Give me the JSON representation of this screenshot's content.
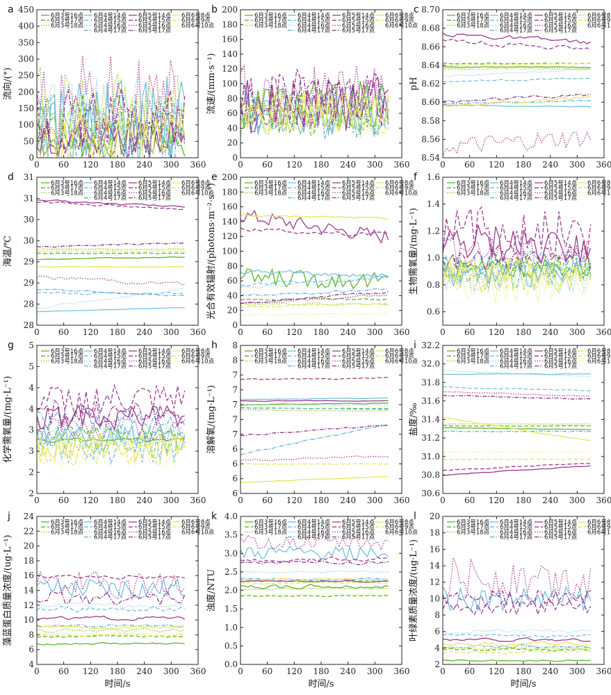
{
  "figure": {
    "x_label": "时间/s",
    "x_range": [
      0,
      360
    ],
    "x_ticks": [
      0,
      60,
      120,
      180,
      240,
      300,
      360
    ]
  },
  "series_styles": [
    {
      "name": "6月3号16点",
      "color": "#5db42a",
      "dash": "solid",
      "width": 1.3
    },
    {
      "name": "6月3号17点",
      "color": "#5db42a",
      "dash": "6,3",
      "width": 1.3
    },
    {
      "name": "6月3号18点",
      "color": "#8fc21d",
      "dash": "1.5,2",
      "width": 1.3
    },
    {
      "name": "6月4号14点",
      "color": "#6bbbe0",
      "dash": "solid",
      "width": 1.2
    },
    {
      "name": "6月4号15点",
      "color": "#6bbbe0",
      "dash": "6,3",
      "width": 1.2
    },
    {
      "name": "6月4号16点",
      "color": "#8fcfe8",
      "dash": "1.5,2",
      "width": 1.2
    },
    {
      "name": "6月4号17点",
      "color": "#58aad6",
      "dash": "6,2,1.5,2",
      "width": 1.2
    },
    {
      "name": "6月5号14点",
      "color": "#9a3d8f",
      "dash": "solid",
      "width": 1.3
    },
    {
      "name": "6月5号15点",
      "color": "#9a3d8f",
      "dash": "6,3",
      "width": 1.3
    },
    {
      "name": "6月5号16点",
      "color": "#b0408f",
      "dash": "1.5,2",
      "width": 1.3
    },
    {
      "name": "6月5号17点",
      "color": "#8e3688",
      "dash": "6,2,1.5,2",
      "width": 1.3
    },
    {
      "name": "6月6号8点",
      "color": "#e6e65a",
      "dash": "solid",
      "width": 1.3
    },
    {
      "name": "6月6号9点",
      "color": "#e6e65a",
      "dash": "6,3",
      "width": 1.3
    },
    {
      "name": "6月6号10点",
      "color": "#eded80",
      "dash": "1.5,2",
      "width": 1.3
    }
  ],
  "chart_data": [
    {
      "label": "a",
      "type": "line",
      "ylabel": "流向/(°)",
      "ylim": [
        0,
        450
      ],
      "yticks": [
        0,
        50,
        100,
        150,
        200,
        250,
        300,
        350,
        400,
        450
      ],
      "series_count": 14,
      "levels": [
        55,
        110,
        150,
        100,
        80,
        130,
        60,
        60,
        110,
        170,
        70,
        60,
        90,
        120
      ],
      "amps": [
        60,
        90,
        130,
        150,
        90,
        120,
        140,
        50,
        100,
        140,
        80,
        80,
        110,
        100
      ]
    },
    {
      "label": "b",
      "type": "line",
      "ylabel": "流速/(mm·s⁻¹)",
      "ylim": [
        0,
        200
      ],
      "yticks": [
        0,
        20,
        40,
        60,
        80,
        100,
        120,
        140,
        160,
        180,
        200
      ],
      "series_count": 14,
      "levels": [
        70,
        60,
        55,
        60,
        65,
        70,
        55,
        70,
        80,
        85,
        75,
        65,
        60,
        60
      ],
      "amps": [
        35,
        30,
        30,
        30,
        35,
        30,
        30,
        35,
        40,
        45,
        35,
        30,
        30,
        30
      ]
    },
    {
      "label": "c",
      "type": "line",
      "ylabel": "pH",
      "ylim": [
        8.54,
        8.7
      ],
      "yticks": [
        8.54,
        8.56,
        8.58,
        8.6,
        8.62,
        8.64,
        8.66,
        8.68,
        8.7
      ],
      "series_count": 14,
      "levels": [
        8.638,
        8.642,
        8.636,
        8.597,
        8.622,
        8.628,
        8.598,
        8.674,
        8.668,
        8.551,
        8.6,
        8.595,
        8.64,
        8.635
      ],
      "amps": [
        0.001,
        0.001,
        0.001,
        0.001,
        0.002,
        0.002,
        0.001,
        0.005,
        0.005,
        0.01,
        0.004,
        0.003,
        0.001,
        0.002
      ],
      "trends": [
        0.0,
        0.0,
        0.0,
        -0.002,
        0.004,
        0.008,
        0.004,
        -0.01,
        -0.012,
        0.01,
        0.008,
        0.01,
        0.002,
        0.002
      ]
    },
    {
      "label": "d",
      "type": "line",
      "ylabel": "海温/℃",
      "ylim": [
        27.5,
        31.0
      ],
      "yticks": [
        27.5,
        28.0,
        28.5,
        29.0,
        29.5,
        30.0,
        30.5,
        31.0
      ],
      "series_count": 14,
      "levels": [
        29.06,
        29.2,
        29.3,
        27.82,
        28.25,
        27.9,
        28.35,
        30.45,
        30.4,
        28.65,
        29.35,
        28.88,
        29.25,
        29.28
      ],
      "amps": [
        0.02,
        0.02,
        0.02,
        0.01,
        0.05,
        0.05,
        0.03,
        0.05,
        0.05,
        0.1,
        0.04,
        0.01,
        0.02,
        0.02
      ],
      "trends": [
        0.05,
        0.0,
        0.0,
        0.1,
        0.0,
        0.45,
        -0.15,
        -0.15,
        -0.15,
        -0.2,
        0.1,
        0.0,
        0.0,
        0.0
      ]
    },
    {
      "label": "e",
      "type": "line",
      "ylabel": "光合有效辐射/(photons·m⁻²·s⁻¹)",
      "ylim": [
        0,
        200
      ],
      "yticks": [
        0,
        20,
        40,
        60,
        80,
        100,
        120,
        140,
        160,
        180,
        200
      ],
      "series_count": 14,
      "levels": [
        65,
        35,
        28,
        72,
        55,
        50,
        40,
        150,
        130,
        30,
        30,
        148,
        25,
        14
      ],
      "amps": [
        12,
        3,
        3,
        8,
        5,
        5,
        4,
        10,
        6,
        4,
        3,
        3,
        2,
        1
      ],
      "trends": [
        -5,
        0,
        0,
        -5,
        10,
        15,
        8,
        -30,
        -8,
        10,
        15,
        -3,
        5,
        2
      ]
    },
    {
      "label": "f",
      "type": "line",
      "ylabel": "生物需氧量/(mg·L⁻¹)",
      "ylim": [
        0.5,
        1.6
      ],
      "yticks": [
        0.6,
        0.8,
        1.0,
        1.2,
        1.4,
        1.6
      ],
      "series_count": 14,
      "levels": [
        0.92,
        0.95,
        0.88,
        0.88,
        0.9,
        0.85,
        0.95,
        1.1,
        1.2,
        1.05,
        1.0,
        0.9,
        0.85,
        0.8
      ],
      "amps": [
        0.07,
        0.1,
        0.12,
        0.1,
        0.14,
        0.12,
        0.1,
        0.15,
        0.18,
        0.1,
        0.1,
        0.1,
        0.12,
        0.13
      ]
    },
    {
      "label": "g",
      "type": "line",
      "ylabel": "化学需氧量/(mg·L⁻¹)",
      "ylim": [
        1.5,
        5.0
      ],
      "yticks": [
        1.5,
        2.0,
        2.5,
        3.0,
        3.5,
        4.0,
        4.5,
        5.0
      ],
      "series_count": 14,
      "levels": [
        2.75,
        2.9,
        2.7,
        2.8,
        2.6,
        2.9,
        3.2,
        3.3,
        3.7,
        3.0,
        3.4,
        2.6,
        2.5,
        2.4
      ],
      "amps": [
        0.1,
        0.2,
        0.3,
        0.3,
        0.4,
        0.3,
        0.3,
        0.3,
        0.4,
        0.3,
        0.3,
        0.3,
        0.35,
        0.35
      ]
    },
    {
      "label": "h",
      "type": "line",
      "ylabel": "溶解氧/(mg·L⁻¹)",
      "ylim": [
        5.8,
        7.8
      ],
      "yticks": [
        5.8,
        6.0,
        6.2,
        6.4,
        6.6,
        6.8,
        7.0,
        7.2,
        7.4,
        7.6,
        7.8
      ],
      "series_count": 14,
      "levels": [
        7.0,
        6.96,
        6.93,
        7.07,
        6.95,
        7.0,
        6.33,
        7.05,
        7.34,
        6.25,
        6.58,
        5.95,
        6.2,
        6.98
      ],
      "amps": [
        0.01,
        0.01,
        0.01,
        0.01,
        0.01,
        0.01,
        0.02,
        0.01,
        0.02,
        0.03,
        0.02,
        0.01,
        0.01,
        0.01
      ],
      "trends": [
        0.02,
        -0.02,
        -0.02,
        0.02,
        0.0,
        0.0,
        0.4,
        0.0,
        0.02,
        0.05,
        0.15,
        0.08,
        0.0,
        0.0
      ]
    },
    {
      "label": "i",
      "type": "line",
      "ylabel": "盐度/‰",
      "ylim": [
        30.6,
        32.2
      ],
      "yticks": [
        30.6,
        30.8,
        31.0,
        31.2,
        31.4,
        31.6,
        31.8,
        32.0,
        32.2
      ],
      "series_count": 14,
      "levels": [
        31.31,
        31.33,
        31.35,
        31.89,
        31.75,
        31.93,
        31.27,
        30.8,
        30.85,
        31.7,
        31.66,
        31.42,
        30.97,
        31.05
      ],
      "amps": [
        0.005,
        0.005,
        0.005,
        0.01,
        0.01,
        0.01,
        0.01,
        0.01,
        0.01,
        0.01,
        0.01,
        0.01,
        0.01,
        0.005
      ],
      "trends": [
        -0.02,
        0.0,
        0.0,
        0.0,
        -0.04,
        -0.07,
        0.0,
        0.1,
        0.08,
        -0.05,
        -0.04,
        -0.25,
        0.0,
        0.0
      ]
    },
    {
      "label": "j",
      "type": "line",
      "ylabel": "藻蓝蛋白质量浓度/(ug·L⁻¹)",
      "ylim": [
        4,
        24
      ],
      "yticks": [
        4,
        6,
        8,
        10,
        12,
        14,
        16,
        18,
        20,
        22,
        24
      ],
      "series_count": 14,
      "levels": [
        6.8,
        7.8,
        8.6,
        14.5,
        11.5,
        12.0,
        9.2,
        10.2,
        15.8,
        14.5,
        13.0,
        9.0,
        8.0,
        8.2
      ],
      "amps": [
        0.3,
        0.3,
        0.5,
        1.5,
        0.8,
        0.6,
        0.5,
        0.5,
        0.5,
        2.0,
        1.0,
        0.3,
        0.3,
        0.3
      ]
    },
    {
      "label": "k",
      "type": "line",
      "ylabel": "浊度/NTU",
      "ylim": [
        0,
        4.0
      ],
      "yticks": [
        0,
        0.5,
        1.0,
        1.5,
        2.0,
        2.5,
        3.0,
        3.5,
        4.0
      ],
      "series_count": 14,
      "levels": [
        2.1,
        1.85,
        2.05,
        3.0,
        2.25,
        2.5,
        2.3,
        2.25,
        2.85,
        3.3,
        2.75,
        2.3,
        2.2,
        1.9
      ],
      "amps": [
        0.12,
        0.03,
        0.05,
        0.2,
        0.05,
        0.05,
        0.05,
        0.04,
        0.12,
        0.2,
        0.1,
        0.05,
        0.05,
        0.04
      ]
    },
    {
      "label": "l",
      "type": "line",
      "ylabel": "叶绿素质量浓度/(ug·L⁻¹)",
      "ylim": [
        2,
        20
      ],
      "yticks": [
        2,
        4,
        6,
        8,
        10,
        12,
        14,
        16,
        18,
        20
      ],
      "series_count": 14,
      "levels": [
        2.5,
        3.8,
        4.0,
        10.0,
        5.5,
        6.0,
        4.2,
        5.0,
        9.0,
        12.5,
        10.0,
        4.5,
        3.5,
        4.0
      ],
      "amps": [
        0.2,
        0.3,
        0.4,
        1.5,
        0.4,
        0.5,
        0.4,
        0.4,
        1.0,
        2.5,
        1.0,
        0.5,
        0.4,
        0.4
      ]
    }
  ]
}
